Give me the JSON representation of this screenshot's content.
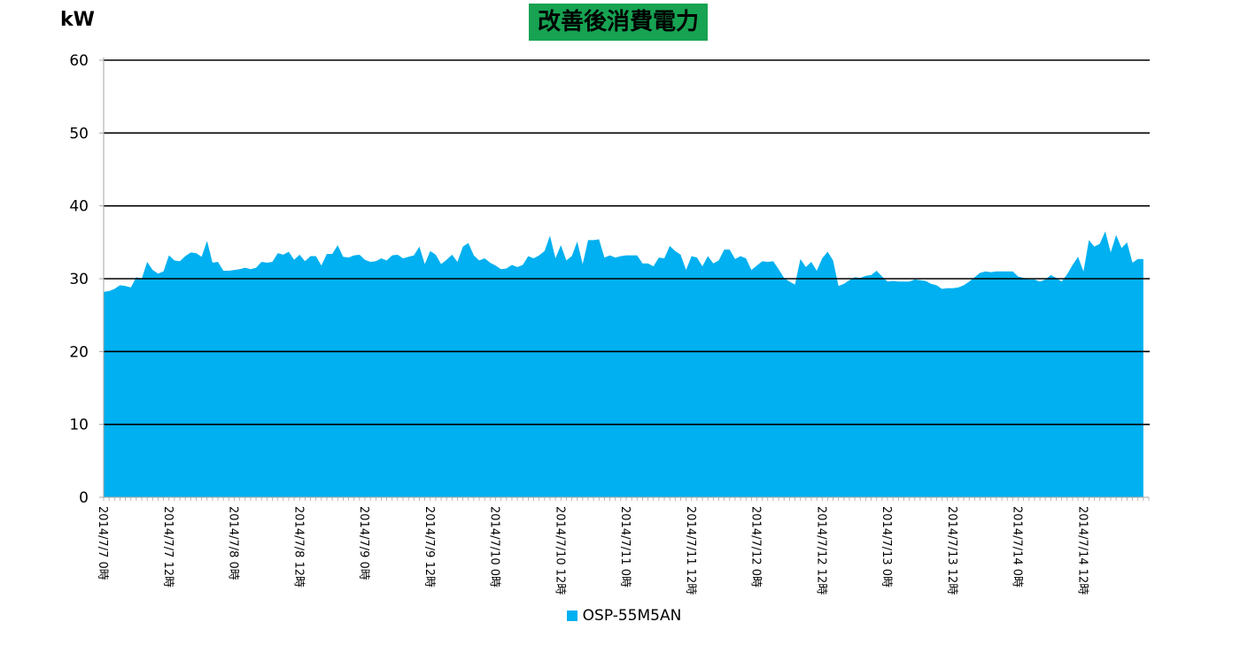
{
  "chart_data": {
    "type": "area",
    "title": "改善後消費電力",
    "ylabel": "kW",
    "ylim": [
      0,
      60
    ],
    "yticks": [
      0,
      10,
      20,
      30,
      40,
      50,
      60
    ],
    "grid": true,
    "legend_position": "bottom",
    "x_tick_labels": [
      "2014/7/7 0時",
      "2014/7/7 12時",
      "2014/7/8 0時",
      "2014/7/8 12時",
      "2014/7/9 0時",
      "2014/7/9 12時",
      "2014/7/10 0時",
      "2014/7/10 12時",
      "2014/7/11 0時",
      "2014/7/11 12時",
      "2014/7/12 0時",
      "2014/7/12 12時",
      "2014/7/13 0時",
      "2014/7/13 12時",
      "2014/7/14 0時",
      "2014/7/14 12時"
    ],
    "x_step_hours": 1,
    "series": [
      {
        "name": "OSP-55M5AN",
        "color": "#00b0f0",
        "values": [
          28.2,
          28.3,
          28.6,
          29.1,
          29.0,
          28.8,
          30.2,
          30.0,
          32.3,
          31.2,
          30.7,
          31.0,
          33.2,
          32.5,
          32.4,
          33.1,
          33.6,
          33.5,
          33.0,
          35.2,
          32.2,
          32.3,
          31.1,
          31.1,
          31.2,
          31.3,
          31.5,
          31.3,
          31.5,
          32.3,
          32.2,
          32.3,
          33.5,
          33.3,
          33.7,
          32.6,
          33.3,
          32.4,
          33.1,
          33.1,
          31.8,
          33.4,
          33.4,
          34.6,
          33.0,
          32.9,
          33.2,
          33.3,
          32.6,
          32.3,
          32.4,
          32.8,
          32.5,
          33.2,
          33.3,
          32.8,
          33.0,
          33.2,
          34.4,
          32.0,
          33.8,
          33.3,
          32.0,
          32.6,
          33.3,
          32.3,
          34.4,
          34.9,
          33.2,
          32.5,
          32.8,
          32.2,
          31.8,
          31.3,
          31.4,
          31.9,
          31.6,
          31.9,
          33.1,
          32.8,
          33.2,
          33.8,
          35.9,
          32.8,
          34.6,
          32.5,
          33.1,
          35.1,
          32.0,
          35.3,
          35.3,
          35.4,
          32.9,
          33.2,
          32.9,
          33.1,
          33.2,
          33.2,
          33.2,
          32.1,
          32.1,
          31.7,
          32.9,
          32.8,
          34.5,
          33.8,
          33.3,
          31.2,
          33.1,
          32.9,
          31.7,
          33.1,
          32.1,
          32.5,
          34.0,
          34.0,
          32.7,
          33.1,
          32.8,
          31.2,
          31.8,
          32.4,
          32.3,
          32.4,
          31.3,
          30.1,
          29.6,
          29.2,
          32.7,
          31.6,
          32.3,
          31.1,
          32.8,
          33.7,
          32.5,
          29.0,
          29.3,
          29.8,
          30.2,
          30.1,
          30.4,
          30.5,
          31.1,
          30.3,
          29.6,
          29.7,
          29.6,
          29.6,
          29.6,
          29.9,
          29.8,
          29.7,
          29.3,
          29.1,
          28.6,
          28.7,
          28.7,
          28.8,
          29.1,
          29.6,
          30.2,
          30.8,
          31.0,
          30.9,
          31.0,
          31.0,
          31.0,
          31.0,
          30.3,
          30.1,
          29.9,
          29.9,
          29.6,
          29.9,
          30.5,
          30.1,
          29.6,
          30.6,
          31.9,
          33.0,
          31.0,
          35.3,
          34.4,
          34.8,
          36.5,
          33.6,
          36.0,
          34.2,
          35.0,
          32.2,
          32.7,
          32.7
        ]
      }
    ]
  }
}
